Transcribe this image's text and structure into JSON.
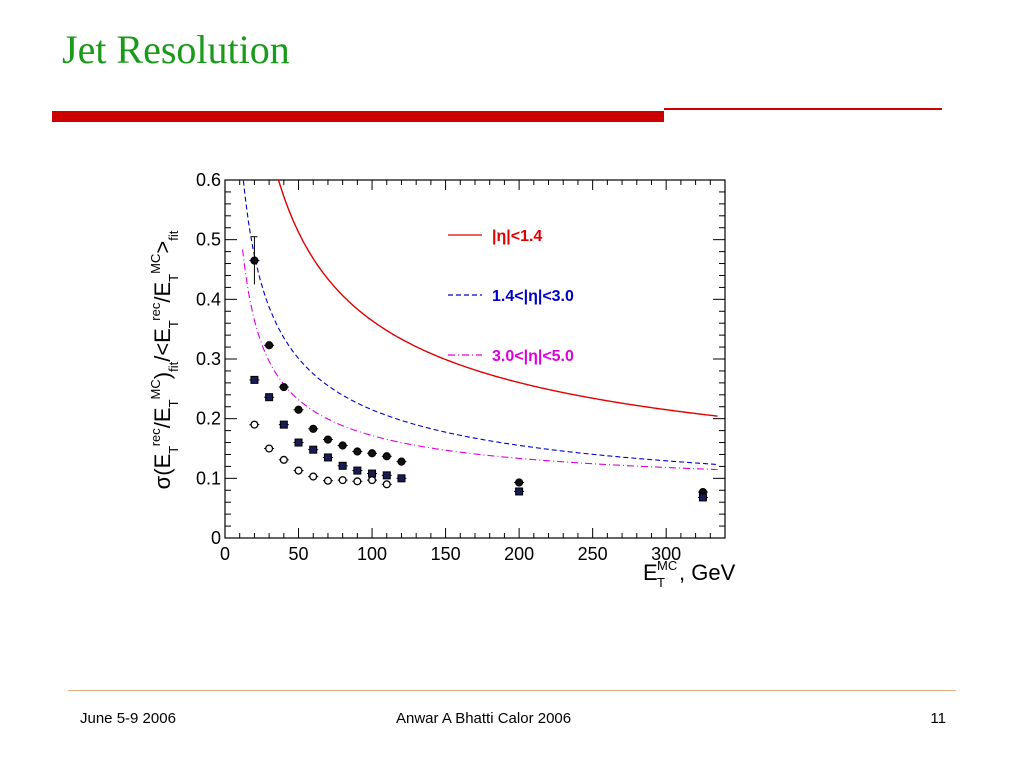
{
  "slide": {
    "title": "Jet Resolution",
    "footer_left": "June 5-9 2006",
    "footer_center": "Anwar A Bhatti  Calor 2006",
    "footer_right": "11"
  },
  "colors": {
    "title": "#1a9a1a",
    "accent_bar": "#cc0000",
    "series1": "#e00000",
    "series2": "#0000cc",
    "series3": "#dd00dd"
  },
  "chart_data": {
    "type": "scatter",
    "xlabel_main": "E",
    "xlabel_sup": "MC",
    "xlabel_sub": "T",
    "xlabel_unit": ", GeV",
    "ylabel_text": "σ(E_T^rec/E_T^MC)_fit/<E_T^rec/E_T^MC>_fit",
    "xlim": [
      0,
      340
    ],
    "ylim": [
      0,
      0.6
    ],
    "xticks": [
      "0",
      "50",
      "100",
      "150",
      "200",
      "250",
      "300"
    ],
    "yticks": [
      "0",
      "0.1",
      "0.2",
      "0.3",
      "0.4",
      "0.5",
      "0.6"
    ],
    "grid": false,
    "legend_position": "top-right",
    "series": [
      {
        "name": "|η|<1.4",
        "line_style": "solid",
        "marker": "filled-circle",
        "x": [
          20,
          30,
          40,
          50,
          60,
          70,
          80,
          90,
          100,
          110,
          120,
          200,
          325
        ],
        "y": [
          0.465,
          0.323,
          0.253,
          0.215,
          0.183,
          0.165,
          0.155,
          0.145,
          0.142,
          0.137,
          0.128,
          0.093,
          0.077
        ],
        "fit_params": {
          "a": 3.6,
          "b": 1.0,
          "c": 0.055
        }
      },
      {
        "name": "1.4<|η|<3.0",
        "line_style": "dashed",
        "marker": "filled-square",
        "x": [
          20,
          30,
          40,
          50,
          60,
          70,
          80,
          90,
          100,
          110,
          120,
          200,
          325
        ],
        "y": [
          0.265,
          0.236,
          0.19,
          0.16,
          0.148,
          0.135,
          0.121,
          0.113,
          0.108,
          0.105,
          0.1,
          0.078,
          0.068
        ],
        "fit_params": {
          "a": 2.1,
          "b": 0.85,
          "c": 0.045
        }
      },
      {
        "name": "3.0<|η|<5.0",
        "line_style": "dash-dot",
        "marker": "open-circle",
        "x": [
          20,
          30,
          40,
          50,
          60,
          70,
          80,
          90,
          100,
          110
        ],
        "y": [
          0.19,
          0.15,
          0.131,
          0.113,
          0.103,
          0.096,
          0.097,
          0.095,
          0.097,
          0.09
        ],
        "fit_params": {
          "a": 1.5,
          "b": 2.4,
          "c": 0.08
        }
      }
    ]
  }
}
